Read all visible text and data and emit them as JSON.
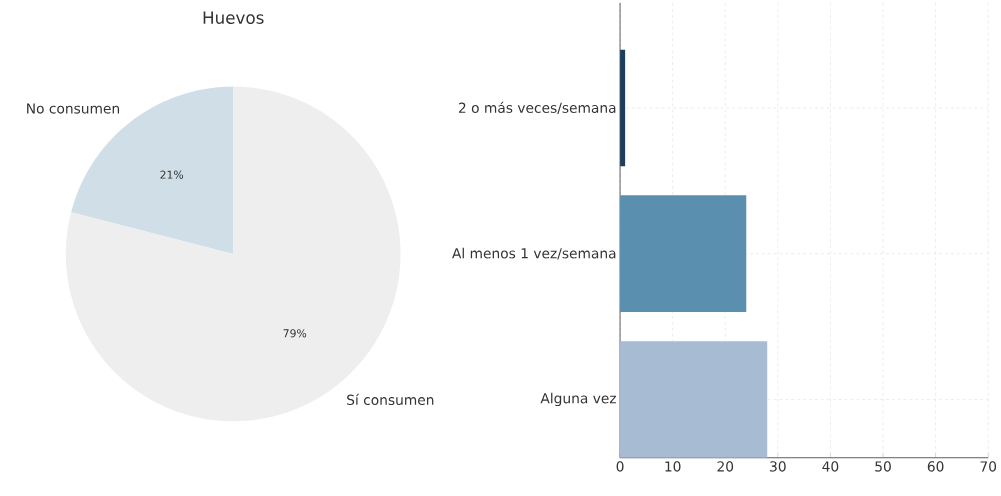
{
  "chart_data": [
    {
      "type": "pie",
      "title": "Huevos",
      "categories": [
        "No consumen",
        "Sí consumen"
      ],
      "values": [
        21,
        79
      ],
      "colors": [
        "#d0dee7",
        "#eeeeee"
      ],
      "value_labels": [
        "21%",
        "79%"
      ]
    },
    {
      "type": "bar",
      "orientation": "horizontal",
      "categories": [
        "2 o más veces/semana",
        "Al menos 1 vez/semana",
        "Alguna vez"
      ],
      "values": [
        1,
        24,
        28
      ],
      "colors": [
        "#1b3f5c",
        "#5a8fb0",
        "#a7bcd3"
      ],
      "xlim": [
        0,
        70
      ],
      "xticks": [
        0,
        10,
        20,
        30,
        40,
        50,
        60,
        70
      ],
      "grid": true
    }
  ]
}
